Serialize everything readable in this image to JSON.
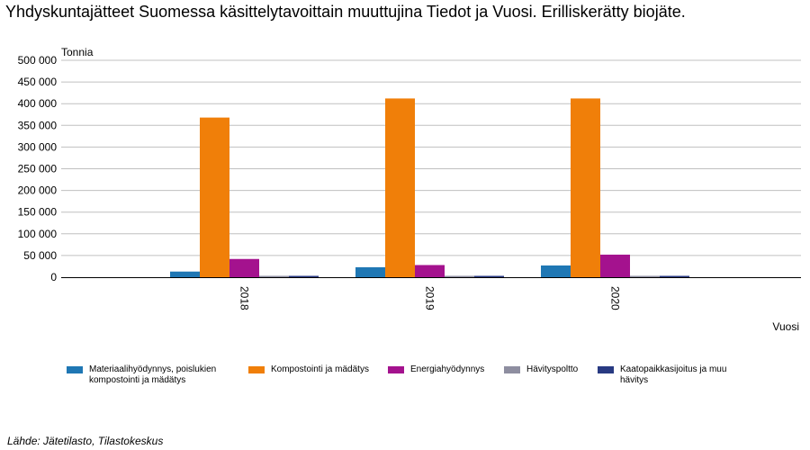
{
  "title": "Yhdyskuntajätteet Suomessa käsittelytavoittain muuttujina Tiedot ja Vuosi. Erilliskerätty biojäte.",
  "source": "Lähde: Jätetilasto, Tilastokeskus",
  "colors": {
    "grid": "#c0c0c0",
    "axis": "#000000"
  },
  "chart_data": {
    "type": "bar",
    "title": "Yhdyskuntajätteet Suomessa käsittelytavoittain muuttujina Tiedot ja Vuosi. Erilliskerätty biojäte.",
    "ylabel": "Tonnia",
    "xlabel": "Vuosi",
    "ylim": [
      0,
      500000
    ],
    "yticks": [
      0,
      50000,
      100000,
      150000,
      200000,
      250000,
      300000,
      350000,
      400000,
      450000,
      500000
    ],
    "ytick_labels": [
      "0",
      "50 000",
      "100 000",
      "150 000",
      "200 000",
      "250 000",
      "300 000",
      "350 000",
      "400 000",
      "450 000",
      "500 000"
    ],
    "categories": [
      "2018",
      "2019",
      "2020"
    ],
    "grid": true,
    "legend_position": "bottom",
    "series": [
      {
        "name": "Materiaalihyödynnys, poislukien kompostointi ja mädätys",
        "legend_lines": [
          "Materiaalihyödynnys, poislukien",
          "kompostointi ja mädätys"
        ],
        "color": "#1f77b4",
        "values": [
          13000,
          23000,
          27000
        ]
      },
      {
        "name": "Kompostointi ja mädätys",
        "legend_lines": [
          "Kompostointi ja mädätys"
        ],
        "color": "#f07f09",
        "values": [
          368000,
          412000,
          412000
        ]
      },
      {
        "name": "Energiahyödynnys",
        "legend_lines": [
          "Energiahyödynnys"
        ],
        "color": "#a4128e",
        "values": [
          42000,
          28000,
          52000
        ]
      },
      {
        "name": "Hävityspoltto",
        "legend_lines": [
          "Hävityspoltto"
        ],
        "color": "#8e8ea0",
        "values": [
          500,
          300,
          300
        ]
      },
      {
        "name": "Kaatopaikkasijoitus ja muu hävitys",
        "legend_lines": [
          "Kaatopaikkasijoitus ja muu",
          "hävitys"
        ],
        "color": "#283a82",
        "values": [
          1500,
          1500,
          1500
        ]
      }
    ]
  }
}
